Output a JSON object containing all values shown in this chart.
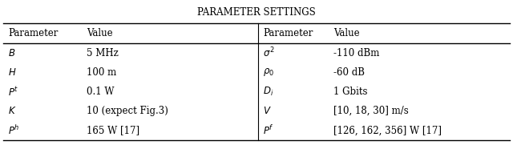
{
  "title": "Parameter Settings",
  "col_headers": [
    "Parameter",
    "Value",
    "Parameter",
    "Value"
  ],
  "rows": [
    [
      "$B$",
      "5 MHz",
      "$\\sigma^2$",
      "-110 dBm"
    ],
    [
      "$H$",
      "100 m",
      "$\\rho_0$",
      "-60 dB"
    ],
    [
      "$P^t$",
      "0.1 W",
      "$D_i$",
      "1 Gbits"
    ],
    [
      "$K$",
      "10 (expect Fig.3)",
      "$V$",
      "[10, 18, 30] m/s"
    ],
    [
      "$P^h$",
      "165 W [17]",
      "$P^f$",
      "[126, 162, 356] W [17]"
    ]
  ],
  "bg_color": "#ffffff",
  "text_color": "#000000",
  "title_fontsize": 8.5,
  "body_fontsize": 8.5,
  "header_fontsize": 8.5,
  "fig_width": 6.4,
  "fig_height": 1.81
}
